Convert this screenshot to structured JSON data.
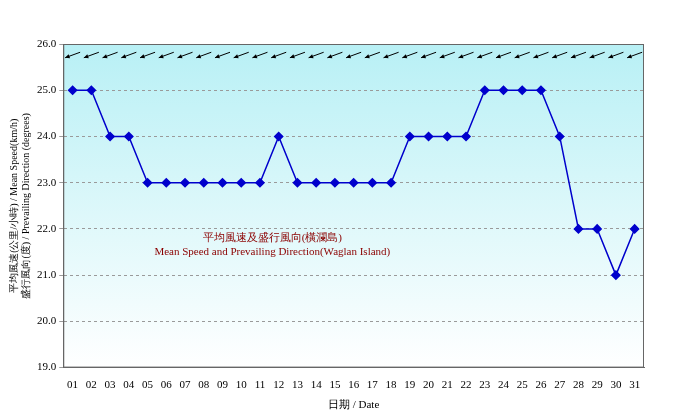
{
  "chart_data": {
    "type": "line",
    "annotations": [
      "平均風速及盛行風向(橫瀾島)",
      "Mean Speed and Prevailing Direction(Waglan Island)"
    ],
    "x_label": "日期 / Date",
    "y_label": [
      "平均風速(公里/小時) / Mean Speed(km/h)",
      "盛行風向(度) / Prevailing Direction (degrees)"
    ],
    "categories": [
      "01",
      "02",
      "03",
      "04",
      "05",
      "06",
      "07",
      "08",
      "09",
      "10",
      "11",
      "12",
      "13",
      "14",
      "15",
      "16",
      "17",
      "18",
      "19",
      "20",
      "21",
      "22",
      "23",
      "24",
      "25",
      "26",
      "27",
      "28",
      "29",
      "30",
      "31"
    ],
    "values": [
      25,
      25,
      24,
      24,
      23,
      23,
      23,
      23,
      23,
      23,
      23,
      24,
      23,
      23,
      23,
      23,
      23,
      23,
      24,
      24,
      24,
      24,
      25,
      25,
      25,
      25,
      24,
      22,
      22,
      21,
      22
    ],
    "directions": [
      70,
      70,
      70,
      70,
      70,
      70,
      70,
      70,
      70,
      70,
      70,
      70,
      70,
      70,
      70,
      70,
      70,
      70,
      70,
      70,
      70,
      70,
      70,
      70,
      70,
      70,
      70,
      70,
      70,
      70,
      70
    ],
    "color": "#0000cc",
    "marker": "diamond",
    "line_style": "solid",
    "ylim": [
      19,
      26
    ],
    "yticks": [
      {
        "value": 19,
        "label": "19.0"
      },
      {
        "value": 20,
        "label": "20.0"
      },
      {
        "value": 21,
        "label": "21.0"
      },
      {
        "value": 22,
        "label": "22.0"
      },
      {
        "value": 23,
        "label": "23.0"
      },
      {
        "value": 24,
        "label": "24.0"
      },
      {
        "value": 25,
        "label": "25.0"
      },
      {
        "value": 26,
        "label": "26.0"
      }
    ],
    "grid": true
  }
}
